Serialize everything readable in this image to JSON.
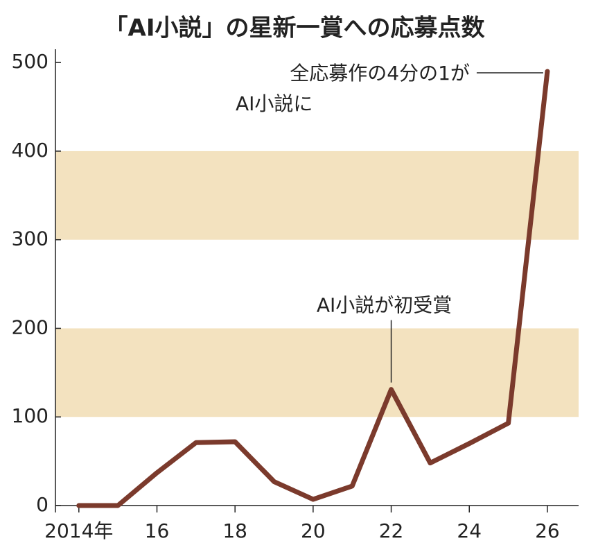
{
  "chart_data": {
    "type": "line",
    "title": "「AI小説」の星新一賞への応募点数",
    "x": [
      2014,
      2015,
      2016,
      2017,
      2018,
      2019,
      2020,
      2021,
      2022,
      2023,
      2024,
      2025,
      2026
    ],
    "series": [
      {
        "color": "#7b3a2c",
        "values": [
          0,
          0,
          37,
          71,
          72,
          27,
          7,
          22,
          131,
          48,
          70,
          93,
          490
        ]
      }
    ],
    "xlim": [
      2013.4,
      2026.8
    ],
    "xticks": [
      {
        "value": 2014,
        "label": "2014年"
      },
      {
        "value": 2016,
        "label": "16"
      },
      {
        "value": 2018,
        "label": "18"
      },
      {
        "value": 2020,
        "label": "20"
      },
      {
        "value": 2022,
        "label": "22"
      },
      {
        "value": 2024,
        "label": "24"
      },
      {
        "value": 2026,
        "label": "26"
      }
    ],
    "ylim": [
      0,
      515
    ],
    "yticks": [
      0,
      100,
      200,
      300,
      400,
      500
    ],
    "grid": "bands",
    "band_color": "#f3e2bf",
    "annotations": [
      {
        "x": 2026,
        "lines": [
          "全応募作の4分の1が",
          "AI小説に"
        ]
      },
      {
        "x": 2022,
        "lines": [
          "AI小説が初受賞"
        ]
      }
    ]
  }
}
